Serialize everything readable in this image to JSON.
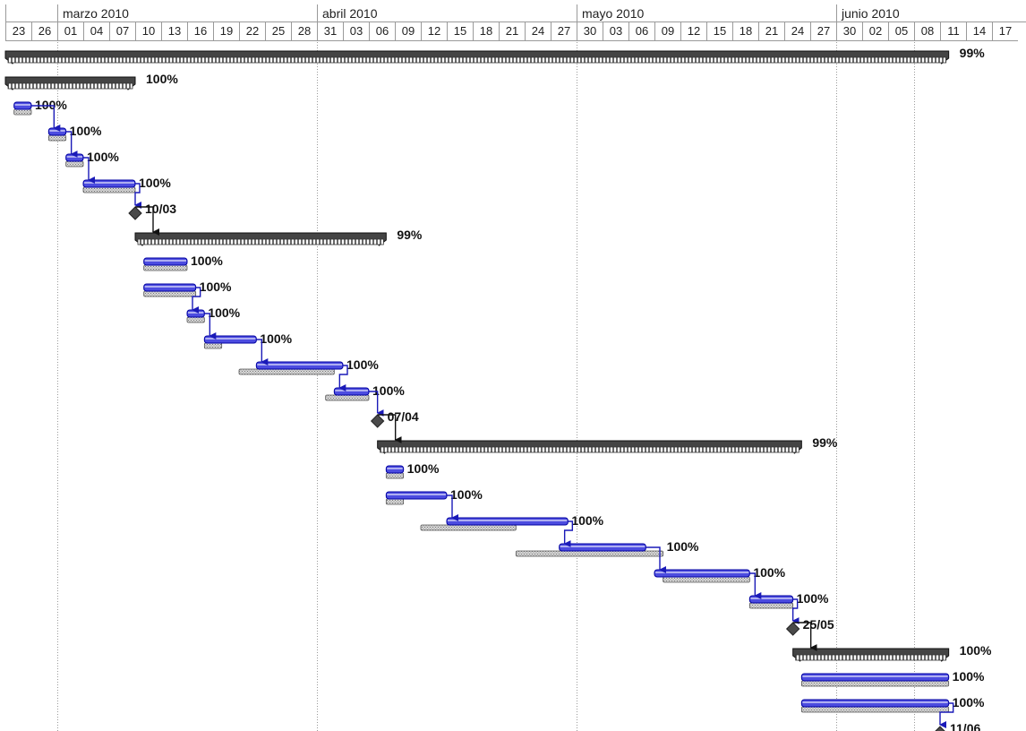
{
  "timescale": {
    "months": [
      {
        "label": "marzo 2010",
        "first_day_index": 2
      },
      {
        "label": "abril 2010",
        "first_day_index": 12
      },
      {
        "label": "mayo 2010",
        "first_day_index": 22
      },
      {
        "label": "junio 2010",
        "first_day_index": 32
      }
    ],
    "days": [
      "23",
      "26",
      "01",
      "04",
      "07",
      "10",
      "13",
      "16",
      "19",
      "22",
      "25",
      "28",
      "31",
      "03",
      "06",
      "09",
      "12",
      "15",
      "18",
      "21",
      "24",
      "27",
      "30",
      "03",
      "06",
      "09",
      "12",
      "15",
      "18",
      "21",
      "24",
      "27",
      "30",
      "02",
      "05",
      "08",
      "11",
      "14",
      "17"
    ]
  },
  "colors": {
    "bar_fill": "#4c4ce0",
    "bar_edge": "#0000a0",
    "summary_fill": "#444444",
    "baseline_fill": "#cfcfcf",
    "link": "#1a1ab8",
    "milestone": "#4a4a4a"
  },
  "tasks": [
    {
      "type": "summary",
      "start": "2010-02-23",
      "end": "2010-06-11",
      "label": "99%"
    },
    {
      "type": "summary",
      "start": "2010-02-23",
      "end": "2010-03-09",
      "label": "100%"
    },
    {
      "type": "task",
      "start": "2010-02-24",
      "end": "2010-02-25",
      "base_start": "2010-02-24",
      "base_end": "2010-02-25",
      "label": "100%",
      "link_to_next": true
    },
    {
      "type": "task",
      "start": "2010-02-28",
      "end": "2010-03-01",
      "base_start": "2010-02-28",
      "base_end": "2010-03-01",
      "label": "100%",
      "link_to_next": true
    },
    {
      "type": "task",
      "start": "2010-03-02",
      "end": "2010-03-03",
      "base_start": "2010-03-02",
      "base_end": "2010-03-03",
      "label": "100%",
      "link_to_next": true
    },
    {
      "type": "task",
      "start": "2010-03-04",
      "end": "2010-03-09",
      "base_start": "2010-03-04",
      "base_end": "2010-03-09",
      "label": "100%",
      "link_to_next": true
    },
    {
      "type": "milestone",
      "date": "2010-03-10",
      "label": "10/03",
      "link_to_next": true
    },
    {
      "type": "summary",
      "start": "2010-03-10",
      "end": "2010-04-07",
      "label": "99%"
    },
    {
      "type": "task",
      "start": "2010-03-11",
      "end": "2010-03-15",
      "base_start": "2010-03-11",
      "base_end": "2010-03-15",
      "label": "100%"
    },
    {
      "type": "task",
      "start": "2010-03-11",
      "end": "2010-03-16",
      "base_start": "2010-03-11",
      "base_end": "2010-03-16",
      "label": "100%",
      "link_to_next": true
    },
    {
      "type": "task",
      "start": "2010-03-16",
      "end": "2010-03-17",
      "base_start": "2010-03-16",
      "base_end": "2010-03-17",
      "label": "100%",
      "link_to_next": true
    },
    {
      "type": "task",
      "start": "2010-03-18",
      "end": "2010-03-23",
      "base_start": "2010-03-18",
      "base_end": "2010-03-19",
      "label": "100%",
      "link_to_next": true
    },
    {
      "type": "task",
      "start": "2010-03-24",
      "end": "2010-04-02",
      "base_start": "2010-03-22",
      "base_end": "2010-04-01",
      "label": "100%",
      "link_to_next": true
    },
    {
      "type": "task",
      "start": "2010-04-02",
      "end": "2010-04-05",
      "base_start": "2010-04-01",
      "base_end": "2010-04-05",
      "label": "100%",
      "link_to_next": true
    },
    {
      "type": "milestone",
      "date": "2010-04-07",
      "label": "07/04",
      "link_to_next": true
    },
    {
      "type": "summary",
      "start": "2010-04-07",
      "end": "2010-05-25",
      "label": "99%"
    },
    {
      "type": "task",
      "start": "2010-04-08",
      "end": "2010-04-09",
      "base_start": "2010-04-08",
      "base_end": "2010-04-09",
      "label": "100%"
    },
    {
      "type": "task",
      "start": "2010-04-08",
      "end": "2010-04-14",
      "base_start": "2010-04-08",
      "base_end": "2010-04-09",
      "label": "100%",
      "link_to_next": true
    },
    {
      "type": "task",
      "start": "2010-04-15",
      "end": "2010-04-28",
      "base_start": "2010-04-12",
      "base_end": "2010-04-22",
      "label": "100%",
      "link_to_next": true
    },
    {
      "type": "task",
      "start": "2010-04-28",
      "end": "2010-05-07",
      "base_start": "2010-04-23",
      "base_end": "2010-05-09",
      "label": "100%",
      "link_to_next": true
    },
    {
      "type": "task",
      "start": "2010-05-09",
      "end": "2010-05-19",
      "base_start": "2010-05-10",
      "base_end": "2010-05-19",
      "label": "100%",
      "link_to_next": true
    },
    {
      "type": "task",
      "start": "2010-05-20",
      "end": "2010-05-24",
      "base_start": "2010-05-20",
      "base_end": "2010-05-24",
      "label": "100%",
      "link_to_next": true
    },
    {
      "type": "milestone",
      "date": "2010-05-25",
      "label": "25/05",
      "link_to_next": true
    },
    {
      "type": "summary",
      "start": "2010-05-25",
      "end": "2010-06-11",
      "label": "100%"
    },
    {
      "type": "task",
      "start": "2010-05-26",
      "end": "2010-06-11",
      "base_start": "2010-05-26",
      "base_end": "2010-06-11",
      "label": "100%"
    },
    {
      "type": "task",
      "start": "2010-05-26",
      "end": "2010-06-11",
      "base_start": "2010-05-26",
      "base_end": "2010-06-11",
      "label": "100%",
      "link_to_next": true
    },
    {
      "type": "milestone",
      "date": "2010-06-11",
      "label": "11/06"
    }
  ]
}
